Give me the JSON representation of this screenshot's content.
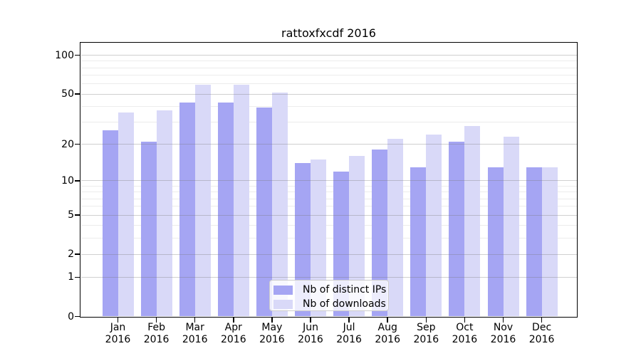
{
  "figure": {
    "title": "rattoxfxcdf 2016"
  },
  "chart_data": {
    "type": "bar",
    "title": "rattoxfxcdf 2016",
    "categories": [
      "Jan",
      "Feb",
      "Mar",
      "Apr",
      "May",
      "Jun",
      "Jul",
      "Aug",
      "Sep",
      "Oct",
      "Nov",
      "Dec"
    ],
    "year": "2016",
    "series": [
      {
        "name": "Nb of distinct IPs",
        "color": "#a5a5f3",
        "values": [
          26,
          21,
          43,
          43,
          39,
          14,
          12,
          18,
          13,
          21,
          13,
          13
        ]
      },
      {
        "name": "Nb of downloads",
        "color": "#d9d9f8",
        "values": [
          36,
          37,
          59,
          59,
          51,
          15,
          16,
          22,
          24,
          28,
          23,
          13
        ]
      }
    ],
    "xlabel": "",
    "ylabel": "",
    "yscale": "log1p",
    "ylim": [
      0,
      127
    ],
    "yticks": [
      0,
      1,
      2,
      5,
      10,
      20,
      50,
      100
    ],
    "minor_gridlines": [
      3,
      4,
      6,
      7,
      8,
      9,
      30,
      40,
      60,
      70,
      80,
      90
    ],
    "grid": true,
    "legend_position": "lower center",
    "axis_color": "#000000",
    "major_grid_color": "#c4c4c4",
    "minor_grid_color": "#ececec"
  }
}
